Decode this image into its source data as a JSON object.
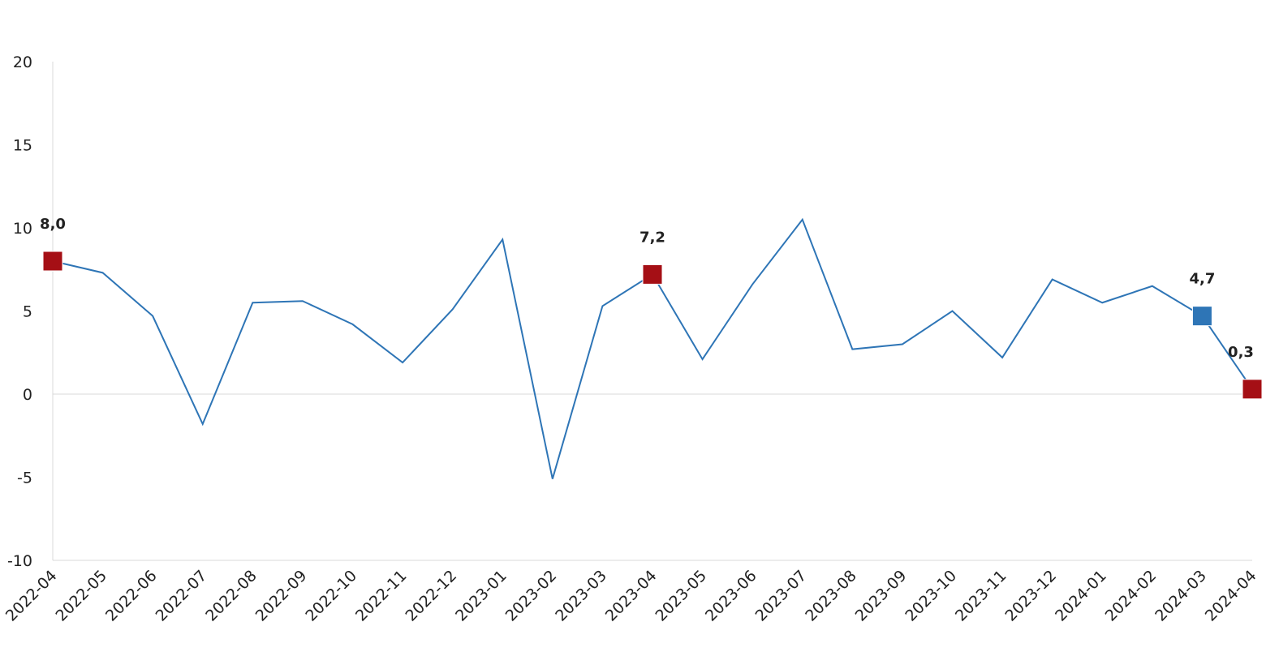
{
  "chart_data": {
    "type": "line",
    "categories": [
      "2022-04",
      "2022-05",
      "2022-06",
      "2022-07",
      "2022-08",
      "2022-09",
      "2022-10",
      "2022-11",
      "2022-12",
      "2023-01",
      "2023-02",
      "2023-03",
      "2023-04",
      "2023-05",
      "2023-06",
      "2023-07",
      "2023-08",
      "2023-09",
      "2023-10",
      "2023-11",
      "2023-12",
      "2024-01",
      "2024-02",
      "2024-03",
      "2024-04"
    ],
    "series": [
      {
        "color": "#2e75b6",
        "values": [
          8.0,
          7.3,
          4.7,
          -1.8,
          5.5,
          5.6,
          4.2,
          1.9,
          5.1,
          9.3,
          -5.1,
          5.3,
          7.2,
          2.1,
          6.6,
          10.5,
          2.7,
          3.0,
          5.0,
          2.2,
          6.9,
          5.5,
          6.5,
          4.7,
          0.3
        ],
        "value_labels": [
          "8,0",
          null,
          null,
          null,
          null,
          null,
          null,
          null,
          null,
          null,
          null,
          null,
          "7,2",
          null,
          null,
          null,
          null,
          null,
          null,
          null,
          null,
          null,
          null,
          "4,7",
          "0,3"
        ],
        "marker_colors": [
          "#a50f15",
          null,
          null,
          null,
          null,
          null,
          null,
          null,
          null,
          null,
          null,
          null,
          "#a50f15",
          null,
          null,
          null,
          null,
          null,
          null,
          null,
          null,
          null,
          null,
          "#2e75b6",
          "#a50f15"
        ]
      }
    ],
    "ylim": [
      -10,
      20
    ],
    "yticks": [
      -10,
      -5,
      0,
      5,
      10,
      15,
      20
    ],
    "grid": false
  }
}
